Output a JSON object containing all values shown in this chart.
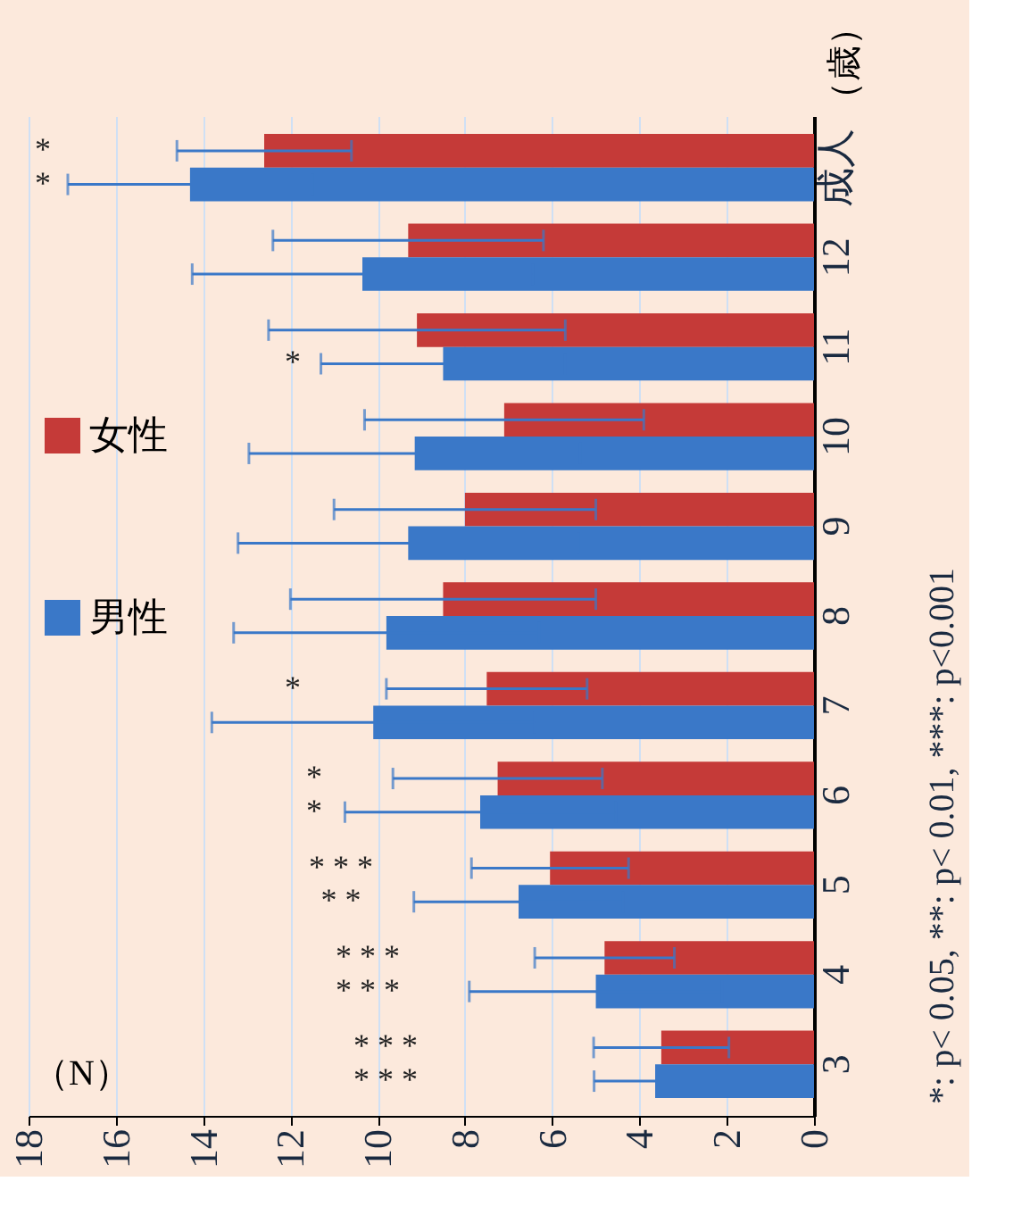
{
  "chart_data": {
    "type": "bar",
    "orientation": "horizontal",
    "ylabel": "（歳）",
    "xlabel": "（N）",
    "categories": [
      "成人",
      "12",
      "11",
      "10",
      "9",
      "8",
      "7",
      "6",
      "5",
      "4",
      "3"
    ],
    "series": [
      {
        "name": "女性",
        "color": "#c53a38",
        "values": [
          12.6,
          9.3,
          9.1,
          7.1,
          8.0,
          8.5,
          7.5,
          7.25,
          6.05,
          4.8,
          3.5
        ],
        "errors": [
          2.0,
          3.1,
          3.4,
          3.2,
          3.0,
          3.5,
          2.3,
          2.4,
          1.8,
          1.6,
          1.55
        ]
      },
      {
        "name": "男性",
        "color": "#3a78c8",
        "values": [
          14.3,
          10.35,
          8.5,
          9.15,
          9.3,
          9.8,
          10.1,
          7.65,
          6.77,
          5.0,
          3.64
        ],
        "errors": [
          2.8,
          3.9,
          2.8,
          3.8,
          3.9,
          3.5,
          3.7,
          3.1,
          2.4,
          2.9,
          1.4
        ]
      }
    ],
    "xlim": [
      18,
      0
    ],
    "xticks": [
      0,
      2,
      4,
      6,
      8,
      10,
      12,
      14,
      16,
      18
    ],
    "grid": "x",
    "legend": "left",
    "annotations": [
      "* * *",
      "* * *",
      "* * *",
      "* * *",
      "* * *",
      "* *",
      "*",
      "*",
      "*",
      "*",
      "*",
      "*",
      "*: p< 0.05, **: p< 0.01, ***: p<0.001"
    ]
  }
}
